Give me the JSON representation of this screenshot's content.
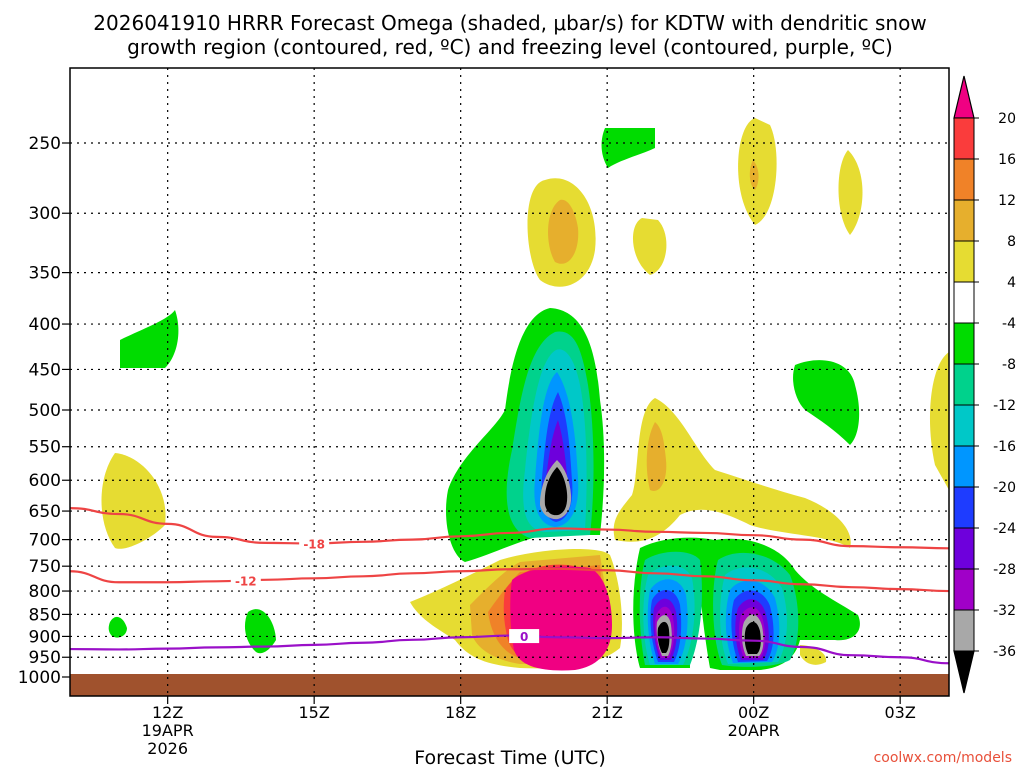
{
  "chart_data": {
    "type": "contour",
    "title_line1": "2026041910 HRRR Forecast Omega (shaded, μbar/s) for KDTW with dendritic snow",
    "title_line2": "growth region (contoured, red, ºC) and freezing level (contoured, purple, ºC)",
    "xlabel": "Forecast Time (UTC)",
    "credit": "coolwx.com/models",
    "y_axis": {
      "scale": "log-pressure",
      "range": [
        1000,
        200
      ],
      "ticks": [
        1000,
        950,
        900,
        850,
        800,
        750,
        700,
        650,
        600,
        550,
        500,
        450,
        400,
        350,
        300,
        250
      ]
    },
    "x_axis": {
      "range_hours": [
        10,
        28
      ],
      "ticks": [
        {
          "hour": 12,
          "label": "12Z",
          "sub1": "19APR",
          "sub2": "2026"
        },
        {
          "hour": 15,
          "label": "15Z",
          "sub1": "",
          "sub2": ""
        },
        {
          "hour": 18,
          "label": "18Z",
          "sub1": "",
          "sub2": ""
        },
        {
          "hour": 21,
          "label": "21Z",
          "sub1": "",
          "sub2": ""
        },
        {
          "hour": 24,
          "label": "00Z",
          "sub1": "20APR",
          "sub2": ""
        },
        {
          "hour": 27,
          "label": "03Z",
          "sub1": "",
          "sub2": ""
        }
      ]
    },
    "grid": true,
    "colorbar": {
      "colors": [
        "#000000",
        "#a8a8a8",
        "#a000c8",
        "#6e00dc",
        "#1e3cff",
        "#0096ff",
        "#00c8c8",
        "#00d28c",
        "#00dc00",
        "#ffffff",
        "#e6dc32",
        "#e6af2d",
        "#f08228",
        "#fa3c3c",
        "#f00082"
      ],
      "labels": [
        "-36",
        "-32",
        "-28",
        "-24",
        "-20",
        "-16",
        "-12",
        "-8",
        "-4",
        "4",
        "8",
        "12",
        "16",
        "20"
      ]
    },
    "isotherms": [
      {
        "value": -18,
        "label": "-18",
        "color": "#ee4444",
        "points": [
          [
            10,
            645
          ],
          [
            11,
            655
          ],
          [
            12,
            672
          ],
          [
            13,
            695
          ],
          [
            14,
            706
          ],
          [
            15,
            707
          ],
          [
            16,
            704
          ],
          [
            17,
            700
          ],
          [
            18,
            694
          ],
          [
            19,
            688
          ],
          [
            20,
            680
          ],
          [
            21,
            682
          ],
          [
            22,
            686
          ],
          [
            23,
            688
          ],
          [
            24,
            692
          ],
          [
            25,
            700
          ],
          [
            26,
            712
          ],
          [
            27,
            714
          ],
          [
            28,
            716
          ]
        ]
      },
      {
        "value": -12,
        "label": "-12",
        "color": "#ee4444",
        "points": [
          [
            10,
            760
          ],
          [
            11,
            782
          ],
          [
            12,
            782
          ],
          [
            13,
            780
          ],
          [
            14,
            777
          ],
          [
            15,
            774
          ],
          [
            16,
            770
          ],
          [
            17,
            764
          ],
          [
            18,
            760
          ],
          [
            19,
            756
          ],
          [
            20,
            755
          ],
          [
            21,
            758
          ],
          [
            22,
            764
          ],
          [
            23,
            770
          ],
          [
            24,
            778
          ],
          [
            25,
            786
          ],
          [
            26,
            792
          ],
          [
            27,
            796
          ],
          [
            28,
            800
          ]
        ]
      },
      {
        "value": 0,
        "label": "0",
        "color": "#9a10c8",
        "points": [
          [
            10,
            930
          ],
          [
            11,
            931
          ],
          [
            12,
            929
          ],
          [
            13,
            926
          ],
          [
            14,
            924
          ],
          [
            15,
            920
          ],
          [
            16,
            915
          ],
          [
            17,
            908
          ],
          [
            18,
            902
          ],
          [
            19,
            898
          ],
          [
            20,
            902
          ],
          [
            21,
            904
          ],
          [
            22,
            902
          ],
          [
            23,
            905
          ],
          [
            24,
            910
          ],
          [
            25,
            925
          ],
          [
            26,
            945
          ],
          [
            27,
            950
          ],
          [
            28,
            965
          ]
        ]
      }
    ],
    "omega_features": [
      {
        "sign": "up",
        "max_intensity": 20,
        "center_hour": 20.2,
        "center_hpa": 820,
        "note": "strong ascent 750-950 hPa"
      },
      {
        "sign": "down",
        "max_intensity": -36,
        "center_hour": 20.1,
        "center_hpa": 620
      },
      {
        "sign": "down",
        "max_intensity": -36,
        "center_hour": 22.1,
        "center_hpa": 880
      },
      {
        "sign": "down",
        "max_intensity": -36,
        "center_hour": 23.9,
        "center_hpa": 880
      }
    ]
  }
}
